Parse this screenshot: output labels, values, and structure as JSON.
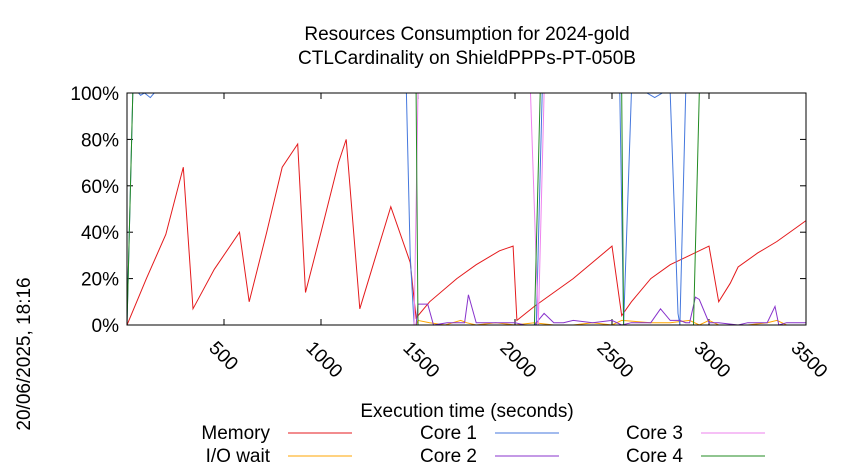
{
  "chart_data": {
    "type": "line",
    "title": "Resources Consumption for 2024-gold",
    "subtitle": "CTLCardinality on ShieldPPPs-PT-050B",
    "xlabel": "Execution time (seconds)",
    "ylabel": "",
    "side_label": "20/06/2025, 18:16",
    "xlim": [
      0,
      3500
    ],
    "ylim": [
      0,
      100
    ],
    "x_ticks": [
      500,
      1000,
      1500,
      2000,
      2500,
      3000,
      3500
    ],
    "y_ticks": [
      0,
      20,
      40,
      60,
      80,
      100
    ],
    "y_tick_labels": [
      "0%",
      "20%",
      "40%",
      "60%",
      "80%",
      "100%"
    ],
    "legend_position": "bottom",
    "series": [
      {
        "name": "Memory",
        "color": "#e41a1c",
        "x": [
          0,
          100,
          200,
          290,
          340,
          450,
          580,
          630,
          720,
          800,
          880,
          920,
          1000,
          1090,
          1130,
          1200,
          1280,
          1360,
          1460,
          1490,
          1560,
          1700,
          1800,
          1920,
          1990,
          2010,
          2100,
          2200,
          2300,
          2400,
          2500,
          2550,
          2600,
          2700,
          2800,
          2900,
          3000,
          3050,
          3110,
          3150,
          3250,
          3350,
          3450,
          3500
        ],
        "values": [
          0,
          20,
          39,
          68,
          7,
          24,
          40,
          10,
          40,
          68,
          78,
          14,
          40,
          70,
          80,
          7,
          29,
          51,
          27,
          3,
          10,
          20,
          26,
          32,
          34,
          2,
          8,
          14,
          20,
          27,
          34,
          4,
          10,
          20,
          26,
          30,
          34,
          10,
          18,
          25,
          31,
          36,
          42,
          45
        ]
      },
      {
        "name": "I/O wait",
        "color": "#ffa500",
        "x": [
          0,
          1490,
          1500,
          1560,
          1640,
          1720,
          1750,
          1800,
          1900,
          2000,
          2100,
          2200,
          2300,
          2400,
          2500,
          2550,
          2700,
          2800,
          2900,
          2950,
          3000,
          3050,
          3200,
          3300,
          3350,
          3400,
          3500
        ],
        "values": [
          0,
          0,
          2,
          1,
          0,
          2,
          1,
          0,
          1,
          0,
          1,
          0,
          0,
          1,
          0,
          2,
          1,
          1,
          2,
          0,
          2,
          0,
          0,
          1,
          2,
          0,
          0
        ]
      },
      {
        "name": "Core 1",
        "color": "#4477dd",
        "x": [
          0,
          30,
          60,
          70,
          90,
          120,
          140,
          170,
          200,
          1440,
          1460,
          1480,
          1500,
          2000,
          2080,
          2110,
          2140,
          2170,
          2200,
          2450,
          2510,
          2540,
          2560,
          2600,
          2680,
          2720,
          2760,
          2800,
          2840,
          2850,
          2880,
          2950,
          3500
        ],
        "values": [
          0,
          100,
          100,
          99,
          100,
          98,
          100,
          100,
          100,
          100,
          30,
          0,
          0,
          0,
          0,
          0,
          100,
          100,
          100,
          100,
          100,
          100,
          0,
          100,
          100,
          98,
          100,
          100,
          5,
          0,
          100,
          100,
          100
        ]
      },
      {
        "name": "Core 2",
        "color": "#8833cc",
        "x": [
          0,
          1490,
          1500,
          1550,
          1580,
          1650,
          1700,
          1740,
          1760,
          1800,
          1900,
          2000,
          2050,
          2100,
          2150,
          2200,
          2250,
          2300,
          2400,
          2500,
          2550,
          2600,
          2650,
          2700,
          2750,
          2800,
          2850,
          2880,
          2900,
          2930,
          2950,
          3000,
          3050,
          3150,
          3200,
          3300,
          3340,
          3360,
          3400,
          3500
        ],
        "values": [
          0,
          0,
          9,
          9,
          0,
          1,
          1,
          1,
          13,
          1,
          1,
          1,
          0,
          0,
          5,
          1,
          1,
          2,
          1,
          2,
          0,
          1,
          1,
          1,
          7,
          2,
          2,
          1,
          1,
          12,
          11,
          1,
          1,
          0,
          1,
          1,
          8,
          0,
          1,
          1
        ]
      },
      {
        "name": "Core 3",
        "color": "#ee82ee",
        "x": [
          0,
          1480,
          1500,
          2080,
          2120,
          2150,
          2500,
          2560,
          2580,
          2700,
          2860,
          2900,
          2950,
          3500
        ],
        "values": [
          0,
          0,
          100,
          100,
          0,
          100,
          100,
          100,
          100,
          100,
          100,
          100,
          100,
          100
        ]
      },
      {
        "name": "Core 4",
        "color": "#228b22",
        "x": [
          0,
          30,
          1490,
          1500,
          1520,
          2100,
          2130,
          2140,
          2550,
          2560,
          2580,
          2900,
          2920,
          2950,
          3500
        ],
        "values": [
          0,
          100,
          100,
          0,
          0,
          0,
          100,
          100,
          100,
          0,
          0,
          0,
          0,
          100,
          100
        ]
      }
    ]
  }
}
